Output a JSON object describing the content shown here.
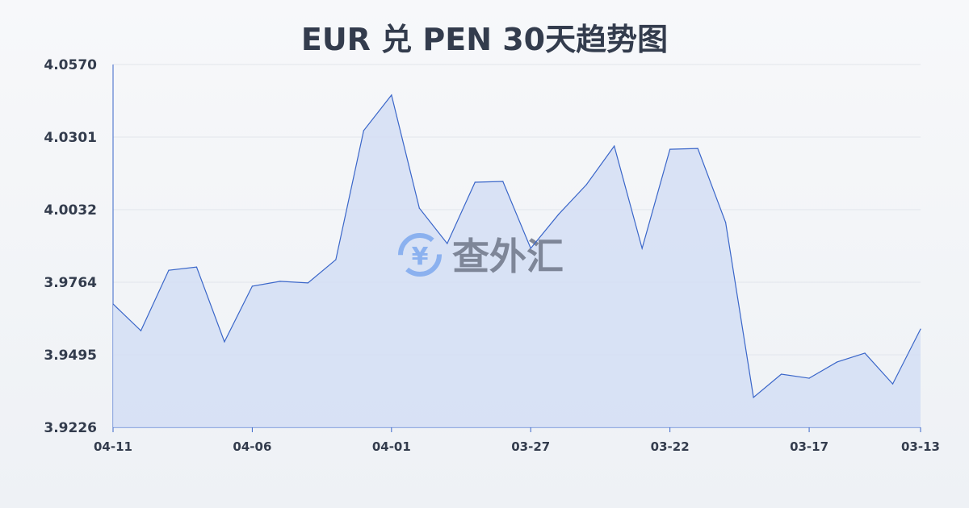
{
  "chart_data": {
    "type": "area",
    "title": "EUR 兑 PEN 30天趋势图",
    "x": [
      "04-11",
      "04-10",
      "04-09",
      "04-08",
      "04-07",
      "04-06",
      "04-05",
      "04-04",
      "04-03",
      "04-02",
      "04-01",
      "03-31",
      "03-30",
      "03-29",
      "03-28",
      "03-27",
      "03-26",
      "03-25",
      "03-24",
      "03-23",
      "03-22",
      "03-21",
      "03-20",
      "03-19",
      "03-18",
      "03-17",
      "03-16",
      "03-15",
      "03-14",
      "03-13"
    ],
    "values": [
      3.9683,
      3.9584,
      3.9808,
      3.982,
      3.9543,
      3.9749,
      3.9767,
      3.9761,
      3.9847,
      4.0325,
      4.0457,
      4.0038,
      3.9907,
      4.0134,
      4.0137,
      3.9889,
      4.0015,
      4.0125,
      4.0268,
      3.9889,
      4.0256,
      4.0259,
      3.9985,
      3.9337,
      3.9423,
      3.9408,
      3.9468,
      3.9501,
      3.9387,
      3.959
    ],
    "x_tick_labels": [
      "04-11",
      "04-06",
      "04-01",
      "03-27",
      "03-22",
      "03-17",
      "03-13"
    ],
    "y_tick_labels": [
      "4.0570",
      "4.0301",
      "4.0032",
      "3.9764",
      "3.9495",
      "3.9226"
    ],
    "ylim": [
      3.9226,
      4.057
    ],
    "grid": "horizontal",
    "xlabel": "",
    "ylabel": "",
    "colors": {
      "line": "#3a66c9",
      "fill": "#d4def4"
    }
  },
  "watermark": {
    "text": "查外汇",
    "icon": "yen-exchange-icon",
    "color": "#7ea9ef"
  }
}
